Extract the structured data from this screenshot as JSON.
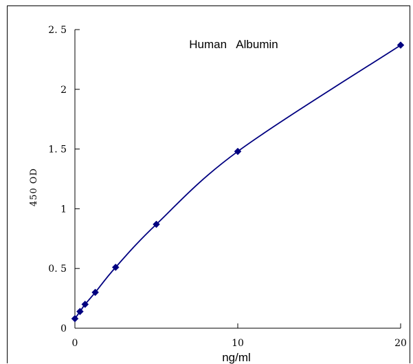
{
  "chart_data": {
    "type": "line",
    "title": "Human   Albumin",
    "xlabel": "ng/ml",
    "ylabel": "450 OD",
    "xlim": [
      0,
      20
    ],
    "ylim": [
      0,
      2.5
    ],
    "x_ticks": [
      0,
      10,
      20
    ],
    "y_ticks": [
      0,
      0.5,
      1,
      1.5,
      2,
      2.5
    ],
    "x_tick_labels": [
      "0",
      "10",
      "20"
    ],
    "y_tick_labels": [
      "0",
      "0. 5",
      "1",
      "1. 5",
      "2",
      "2. 5"
    ],
    "grid": false,
    "legend": "none",
    "series": [
      {
        "color": "#000080",
        "marker": "diamond",
        "x": [
          0,
          0.3125,
          0.625,
          1.25,
          2.5,
          5,
          10,
          20
        ],
        "y": [
          0.08,
          0.14,
          0.2,
          0.3,
          0.51,
          0.87,
          1.48,
          2.37
        ]
      }
    ]
  }
}
